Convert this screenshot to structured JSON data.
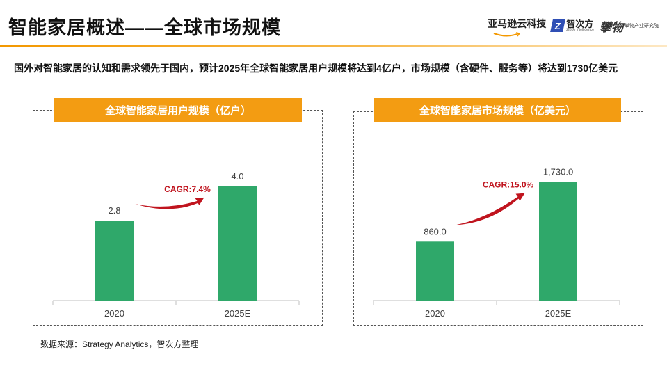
{
  "page": {
    "title": "智能家居概述——全球市场规模",
    "description": "国外对智能家居的认知和需求领先于国内，预计2025年全球智能家居用户规模将达到4亿户，市场规模（含硬件、服务等）将达到1730亿美元",
    "source": "数据来源：Strategy Analytics，智次方整理"
  },
  "logos": {
    "amazon_cloud": "亚马逊云科技",
    "zhicifang": "智次方",
    "zhicifang_sub": "ZiBoo Intelligence",
    "panwu_mark": "攀物",
    "panwu_sub": "攀物产业研究院"
  },
  "colors": {
    "bar": "#2fa86a",
    "header": "#f39c12",
    "accent": "#f39800",
    "cagr": "#c0141e"
  },
  "chart_data": [
    {
      "type": "bar",
      "title": "全球智能家居用户规模（亿户）",
      "categories": [
        "2020",
        "2025E"
      ],
      "values": [
        2.8,
        4.0
      ],
      "value_labels": [
        "2.8",
        "4.0"
      ],
      "annotation": "CAGR:7.4%",
      "xlabel": "",
      "ylabel": "",
      "ylim": [
        0,
        4.8
      ]
    },
    {
      "type": "bar",
      "title": "全球智能家居市场规模（亿美元）",
      "categories": [
        "2020",
        "2025E"
      ],
      "values": [
        860.0,
        1730.0
      ],
      "value_labels": [
        "860.0",
        "1,730.0"
      ],
      "annotation": "CAGR:15.0%",
      "xlabel": "",
      "ylabel": "",
      "ylim": [
        0,
        2000
      ]
    }
  ]
}
